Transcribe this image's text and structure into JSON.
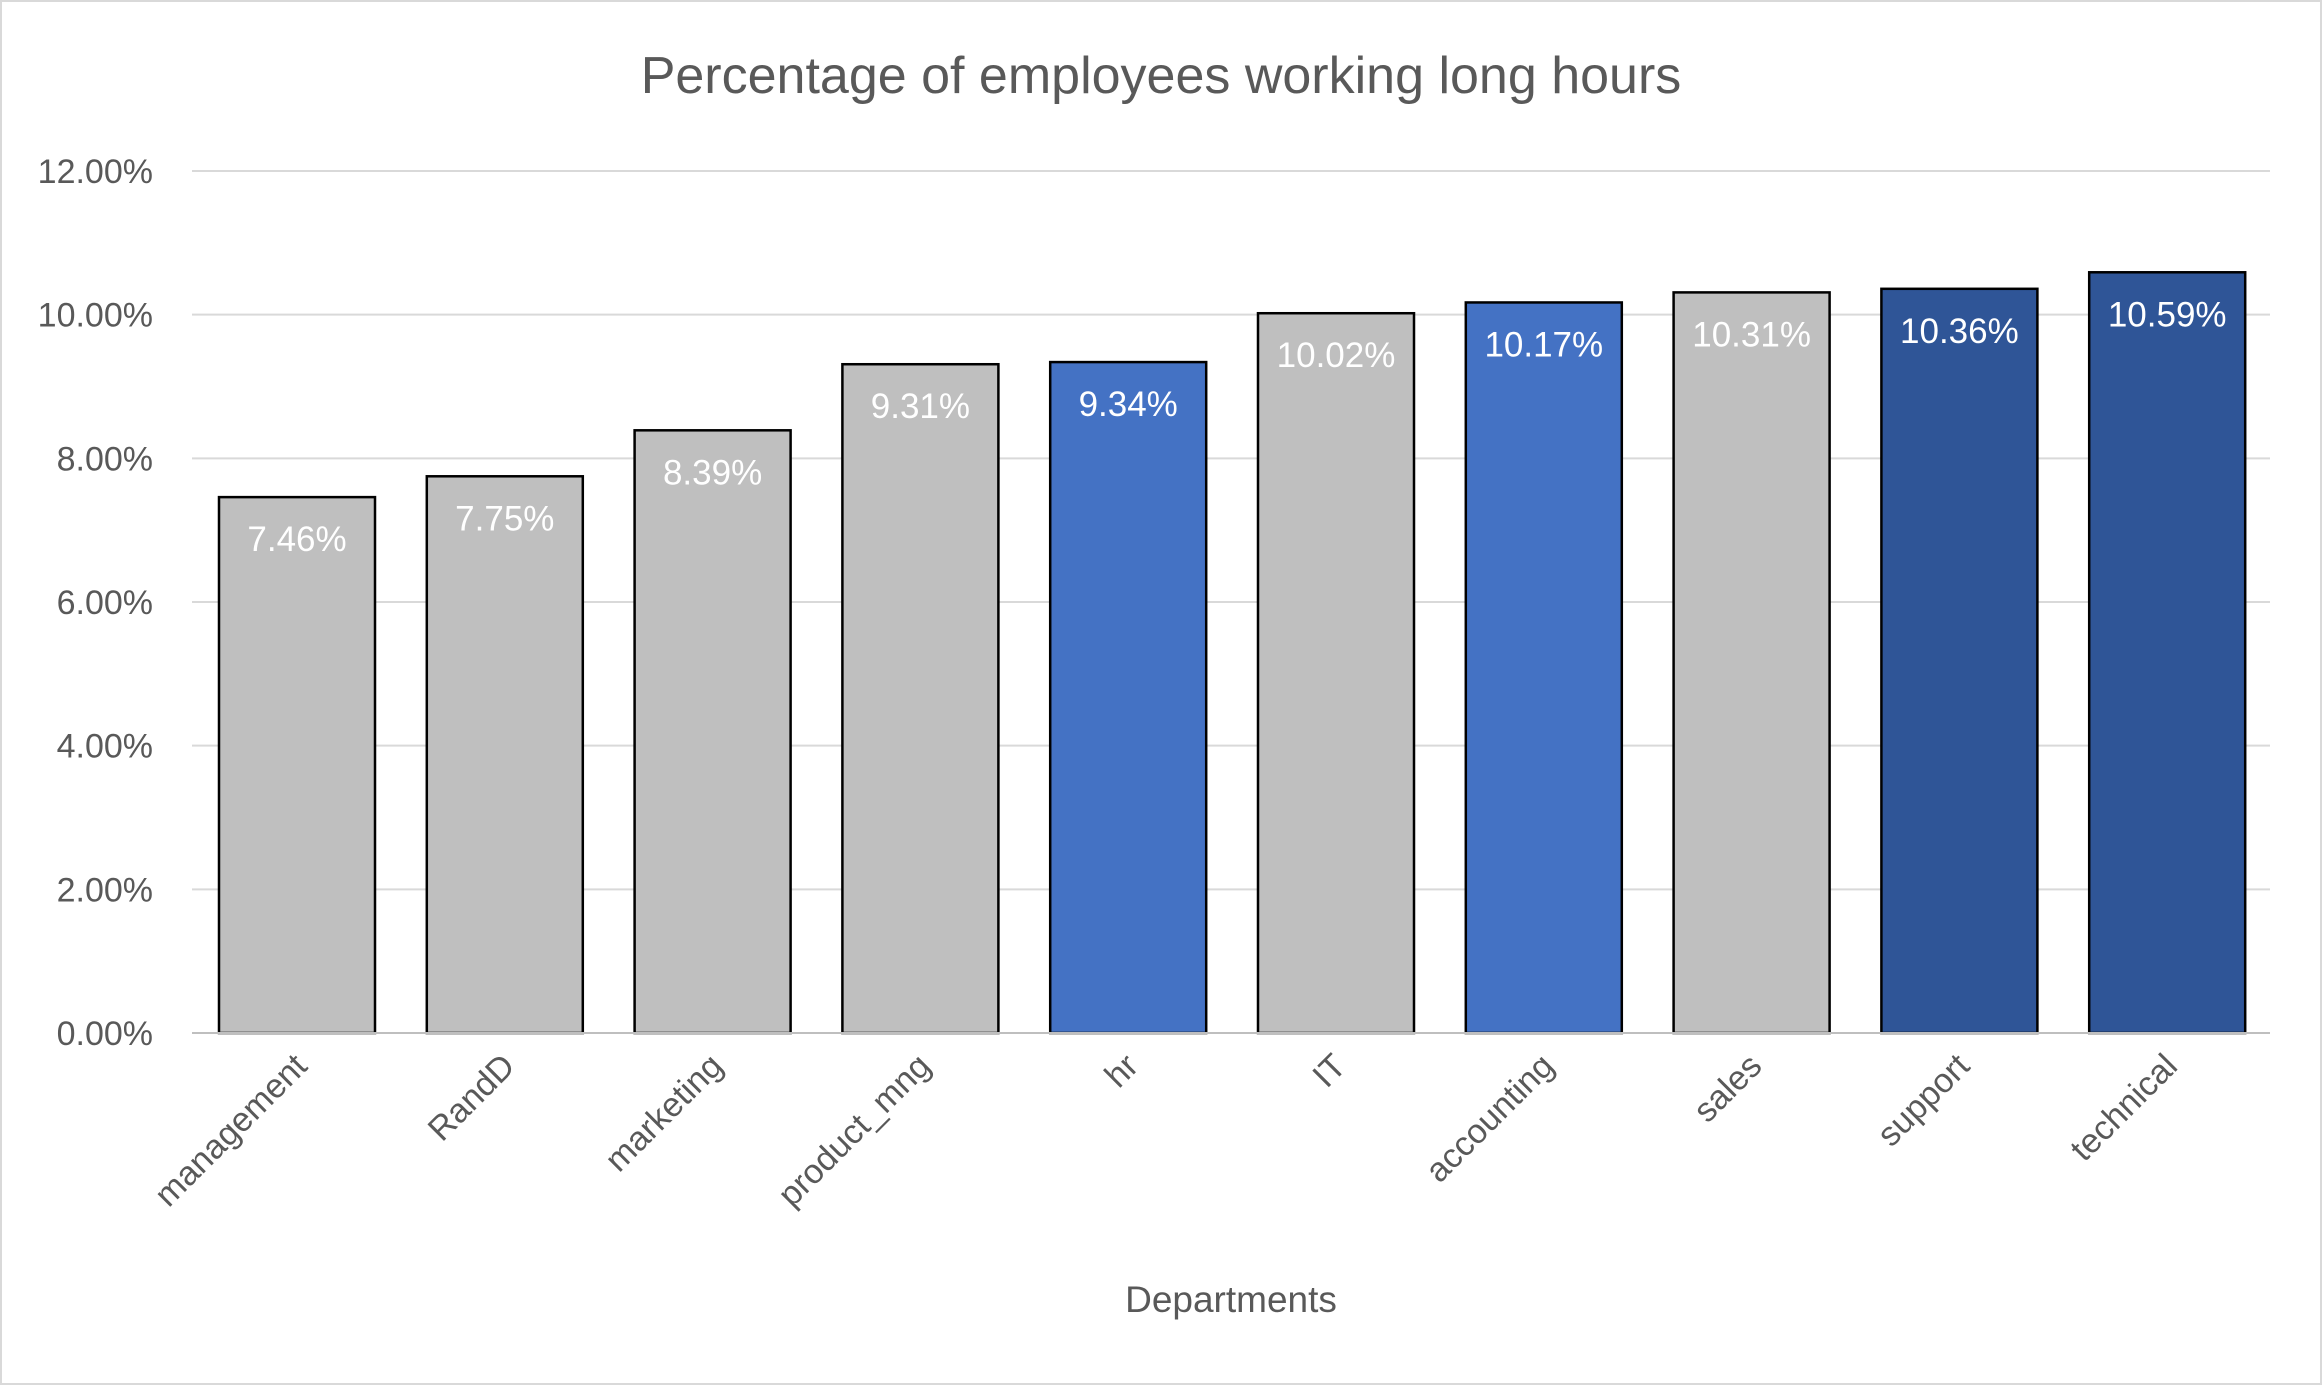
{
  "chart_data": {
    "type": "bar",
    "title": "Percentage of employees working long hours",
    "xlabel": "Departments",
    "ylabel": "",
    "ylim": [
      0,
      12
    ],
    "yticks": [
      "0.00%",
      "2.00%",
      "4.00%",
      "6.00%",
      "8.00%",
      "10.00%",
      "12.00%"
    ],
    "grid": true,
    "categories": [
      "management",
      "RandD",
      "marketing",
      "product_mng",
      "hr",
      "IT",
      "accounting",
      "sales",
      "support",
      "technical"
    ],
    "values": [
      7.46,
      7.75,
      8.39,
      9.31,
      9.34,
      10.02,
      10.17,
      10.31,
      10.36,
      10.59
    ],
    "value_labels": [
      "7.46%",
      "7.75%",
      "8.39%",
      "9.31%",
      "9.34%",
      "10.02%",
      "10.17%",
      "10.31%",
      "10.36%",
      "10.59%"
    ],
    "bar_colors": [
      "#bfbfbf",
      "#bfbfbf",
      "#bfbfbf",
      "#bfbfbf",
      "#4472c4",
      "#bfbfbf",
      "#4472c4",
      "#bfbfbf",
      "#2f5597",
      "#2f5597"
    ]
  }
}
